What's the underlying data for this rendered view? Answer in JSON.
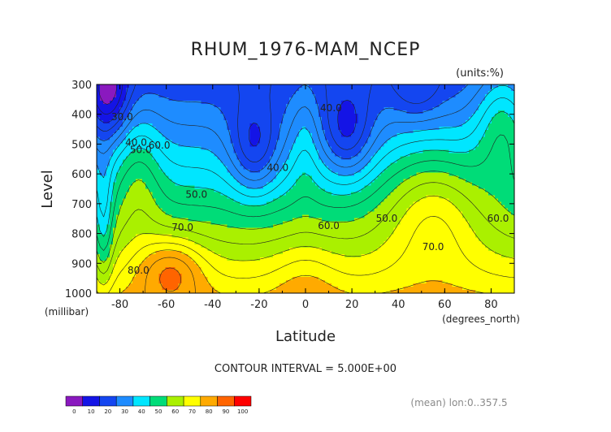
{
  "chart_data": {
    "type": "contour",
    "title": "RHUM_1976-MAM_NCEP",
    "units_note": "(units:%)",
    "xlabel": "Latitude",
    "ylabel": "Level",
    "x_units": "(degrees_north)",
    "y_units": "(millibar)",
    "xlim": [
      -90,
      90
    ],
    "ylim": [
      300,
      1000
    ],
    "y_inverted": true,
    "x_ticks": [
      -80,
      -60,
      -40,
      -20,
      0,
      20,
      40,
      60,
      80
    ],
    "y_ticks": [
      300,
      400,
      500,
      600,
      700,
      800,
      900,
      1000
    ],
    "contour_interval_text": "CONTOUR INTERVAL = 5.000E+00",
    "mean_note": "(mean) lon:0..357.5",
    "colorbar": {
      "ticks": [
        0,
        10,
        20,
        30,
        40,
        50,
        60,
        70,
        80,
        90,
        100
      ],
      "colors": [
        "#8a19bf",
        "#1414e6",
        "#1446f0",
        "#1e8cff",
        "#00e6ff",
        "#00dc78",
        "#aaf000",
        "#ffff00",
        "#ffaa00",
        "#ff6400",
        "#ff0000"
      ]
    },
    "contour_labels": [
      {
        "text": "30.0",
        "x": -79,
        "y": 420
      },
      {
        "text": "40.0",
        "x": -73,
        "y": 505
      },
      {
        "text": "50.0",
        "x": -71,
        "y": 530
      },
      {
        "text": "60.0",
        "x": -63,
        "y": 515
      },
      {
        "text": "50.0",
        "x": -47,
        "y": 680
      },
      {
        "text": "70.0",
        "x": -53,
        "y": 790
      },
      {
        "text": "80.0",
        "x": -72,
        "y": 935
      },
      {
        "text": "40.0",
        "x": -12,
        "y": 590
      },
      {
        "text": "40.0",
        "x": 11,
        "y": 390
      },
      {
        "text": "60.0",
        "x": 10,
        "y": 785
      },
      {
        "text": "50.0",
        "x": 35,
        "y": 760
      },
      {
        "text": "70.0",
        "x": 55,
        "y": 855
      },
      {
        "text": "60.0",
        "x": 83,
        "y": 760
      }
    ],
    "landmarks_note": "Relative humidity minima near -20 and +20 degrees north at 400-550 mb (below 20%); maxima (>90%) near -55 to -60 at 950 mb."
  }
}
